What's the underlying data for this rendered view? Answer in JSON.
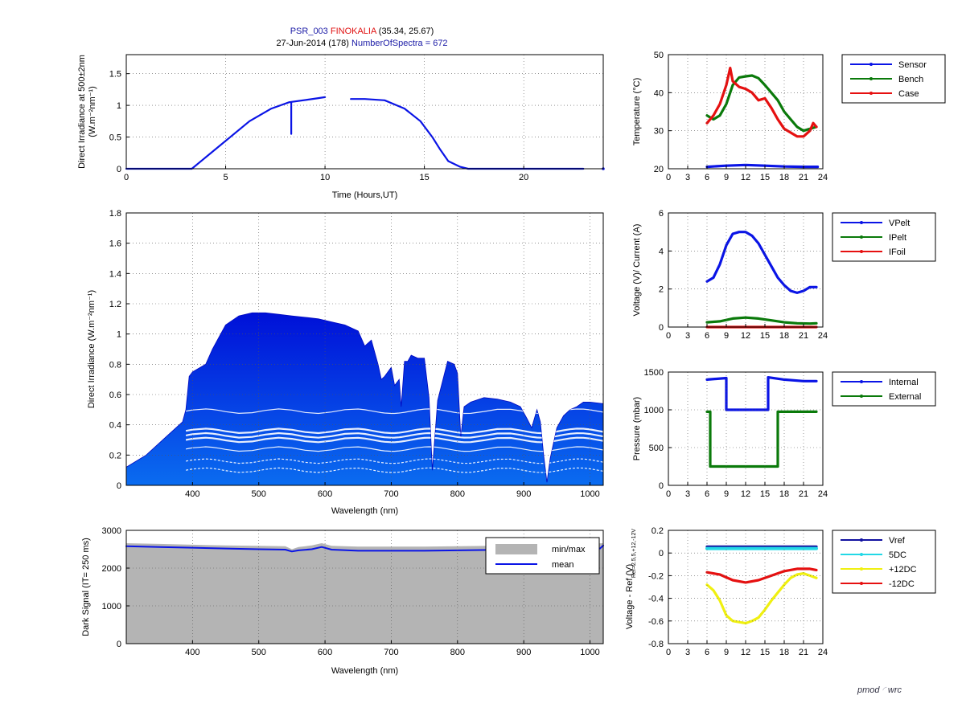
{
  "title": {
    "instrument": "PSR_003",
    "site": "FINOKALIA",
    "coords": "(35.34, 25.67)",
    "date": "27-Jun-2014 (178)",
    "spectra": "NumberOfSpectra = 672",
    "colors": {
      "instrument": "#1a1aa6",
      "site": "#e01010",
      "plain": "#000000"
    }
  },
  "logo": {
    "left": "pmod",
    "right": "wrc"
  },
  "colors": {
    "blue": "#0a14e6",
    "green": "#0a7a0a",
    "red": "#e61010",
    "cyan": "#22d8e6",
    "yellow": "#f0f010",
    "gray": "#b4b4b4",
    "navy": "#1010a0"
  },
  "chart_data": [
    {
      "id": "irr500",
      "type": "line",
      "ylabel": "Direct Irradiance at 500±2nm",
      "ylabel2": "(W.m⁻²nm⁻¹)",
      "xlabel": "Time (Hours,UT)",
      "xlim": [
        0,
        24
      ],
      "ylim": [
        0,
        1.8
      ],
      "xticks": [
        0,
        5,
        10,
        15,
        20
      ],
      "yticks": [
        0,
        0.5,
        1,
        1.5
      ],
      "grid": true,
      "series": [
        {
          "color": "blue",
          "x": [
            0,
            3.3,
            6.2,
            7.3,
            8.2,
            9.6,
            10.0
          ],
          "y": [
            0,
            0,
            0.75,
            0.95,
            1.05,
            1.11,
            1.13
          ]
        },
        {
          "color": "blue",
          "x": [
            11.3,
            12.0,
            13.0,
            14.0,
            14.8,
            15.4,
            15.8,
            16.2,
            16.8,
            17.2,
            23.0
          ],
          "y": [
            1.1,
            1.1,
            1.08,
            0.95,
            0.75,
            0.5,
            0.3,
            0.12,
            0.03,
            0,
            0
          ]
        },
        {
          "color": "blue",
          "x": [
            8.3,
            8.3
          ],
          "y": [
            1.05,
            0.55
          ]
        }
      ],
      "points": [
        {
          "color": "blue",
          "x": 24,
          "y": 0
        }
      ]
    },
    {
      "id": "spectra",
      "type": "area",
      "ylabel": "Direct Irradiance (W.m⁻²nm⁻¹)",
      "xlabel": "Wavelength (nm)",
      "xlim": [
        300,
        1020
      ],
      "ylim": [
        0,
        1.8
      ],
      "xticks": [
        400,
        500,
        600,
        700,
        800,
        900,
        1000
      ],
      "yticks": [
        0,
        0.2,
        0.4,
        0.6,
        0.8,
        1,
        1.2,
        1.4,
        1.6,
        1.8
      ],
      "grid": true,
      "envelope": {
        "x": [
          300,
          330,
          360,
          385,
          390,
          395,
          400,
          420,
          430,
          440,
          450,
          470,
          490,
          510,
          530,
          550,
          570,
          590,
          610,
          630,
          650,
          660,
          670,
          680,
          685,
          690,
          700,
          705,
          712,
          715,
          720,
          725,
          730,
          740,
          750,
          757,
          762,
          770,
          785,
          795,
          800,
          805,
          810,
          820,
          840,
          860,
          880,
          895,
          905,
          912,
          920,
          925,
          930,
          935,
          940,
          950,
          960,
          970,
          980,
          990,
          1000,
          1020
        ],
        "y": [
          0.12,
          0.2,
          0.32,
          0.42,
          0.5,
          0.72,
          0.75,
          0.8,
          0.9,
          0.98,
          1.06,
          1.12,
          1.14,
          1.14,
          1.13,
          1.12,
          1.11,
          1.1,
          1.08,
          1.06,
          1.02,
          0.92,
          0.96,
          0.8,
          0.7,
          0.72,
          0.78,
          0.66,
          0.7,
          0.52,
          0.82,
          0.82,
          0.86,
          0.84,
          0.84,
          0.58,
          0.1,
          0.56,
          0.82,
          0.8,
          0.74,
          0.32,
          0.52,
          0.55,
          0.58,
          0.57,
          0.55,
          0.52,
          0.44,
          0.38,
          0.5,
          0.42,
          0.2,
          0.02,
          0.18,
          0.38,
          0.46,
          0.5,
          0.52,
          0.55,
          0.55,
          0.54
        ]
      },
      "levels": [
        0.1,
        0.16,
        0.24,
        0.3,
        0.33,
        0.36,
        0.49
      ]
    },
    {
      "id": "dark",
      "type": "area",
      "ylabel": "Dark Signal (IT= 250 ms)",
      "xlabel": "Wavelength (nm)",
      "xlim": [
        300,
        1020
      ],
      "ylim": [
        0,
        3000
      ],
      "xticks": [
        400,
        500,
        600,
        700,
        800,
        900,
        1000
      ],
      "yticks": [
        0,
        1000,
        2000,
        3000
      ],
      "grid": true,
      "series": [
        {
          "name": "min/max",
          "color": "gray",
          "x": [
            300,
            350,
            400,
            450,
            500,
            540,
            550,
            560,
            580,
            595,
            610,
            650,
            700,
            750,
            800,
            850,
            900,
            950,
            1000,
            1020
          ],
          "y": [
            2660,
            2640,
            2620,
            2600,
            2590,
            2580,
            2500,
            2560,
            2600,
            2660,
            2590,
            2570,
            2570,
            2570,
            2580,
            2590,
            2600,
            2620,
            2650,
            2660
          ]
        },
        {
          "name": "mean",
          "color": "blue",
          "x": [
            300,
            350,
            400,
            450,
            500,
            540,
            550,
            560,
            580,
            595,
            610,
            650,
            700,
            750,
            800,
            850,
            900,
            950,
            1000,
            1015,
            1020
          ],
          "y": [
            2580,
            2560,
            2540,
            2520,
            2500,
            2490,
            2440,
            2470,
            2500,
            2560,
            2490,
            2460,
            2460,
            2460,
            2470,
            2480,
            2490,
            2500,
            2540,
            2520,
            2600
          ]
        }
      ],
      "legend": {
        "placement": "top-right",
        "entries": [
          "min/max",
          "mean"
        ]
      }
    },
    {
      "id": "temp",
      "type": "line",
      "ylabel": "Temperature (°C)",
      "xlim": [
        0,
        24
      ],
      "ylim": [
        20,
        50
      ],
      "xticks": [
        0,
        3,
        6,
        9,
        12,
        15,
        18,
        21,
        24
      ],
      "yticks": [
        20,
        30,
        40,
        50
      ],
      "grid": true,
      "series": [
        {
          "name": "Sensor",
          "color": "blue",
          "x": [
            6,
            9,
            12,
            15,
            18,
            21,
            23.2
          ],
          "y": [
            20.5,
            20.8,
            21.0,
            20.8,
            20.6,
            20.5,
            20.5
          ]
        },
        {
          "name": "Bench",
          "color": "green",
          "x": [
            6,
            7,
            8,
            9,
            10,
            11,
            12,
            13,
            14,
            15,
            16,
            17,
            18,
            19,
            20,
            21,
            22,
            23
          ],
          "y": [
            34,
            33,
            34,
            37,
            42,
            44,
            44.3,
            44.5,
            43.8,
            42,
            40,
            38,
            35,
            33,
            31,
            30,
            30.5,
            31
          ]
        },
        {
          "name": "Case",
          "color": "red",
          "x": [
            6,
            7,
            8,
            9,
            9.6,
            10,
            11,
            12,
            13,
            14,
            15,
            16,
            17,
            18,
            19,
            20,
            21,
            22,
            22.5,
            23
          ],
          "y": [
            32,
            34,
            37,
            42,
            46.5,
            43,
            41.5,
            41,
            40,
            38,
            38.5,
            36,
            33,
            30.5,
            29.5,
            28.5,
            28.5,
            30,
            32,
            31
          ]
        }
      ],
      "legend": {
        "placement": "outside-right",
        "entries": [
          "Sensor",
          "Bench",
          "Case"
        ]
      }
    },
    {
      "id": "volt",
      "type": "line",
      "ylabel": "Voltage (V)/ Current (A)",
      "xlim": [
        0,
        24
      ],
      "ylim": [
        0,
        6
      ],
      "xticks": [
        0,
        3,
        6,
        9,
        12,
        15,
        18,
        21,
        24
      ],
      "yticks": [
        0,
        2,
        4,
        6
      ],
      "grid": true,
      "series": [
        {
          "name": "VPelt",
          "color": "blue",
          "x": [
            6,
            7,
            8,
            9,
            10,
            11,
            12,
            13,
            14,
            15,
            16,
            17,
            18,
            19,
            20,
            21,
            22,
            23
          ],
          "y": [
            2.4,
            2.6,
            3.3,
            4.3,
            4.9,
            5.0,
            5.0,
            4.8,
            4.4,
            3.8,
            3.2,
            2.6,
            2.2,
            1.9,
            1.8,
            1.9,
            2.1,
            2.1
          ]
        },
        {
          "name": "IPelt",
          "color": "green",
          "x": [
            6,
            8,
            10,
            12,
            14,
            16,
            18,
            20,
            22,
            23
          ],
          "y": [
            0.25,
            0.3,
            0.45,
            0.5,
            0.45,
            0.35,
            0.25,
            0.2,
            0.18,
            0.2
          ]
        },
        {
          "name": "IFoil",
          "color": "red",
          "x": [
            6,
            23
          ],
          "y": [
            0,
            0
          ]
        }
      ],
      "legend": {
        "placement": "outside-right",
        "entries": [
          "VPelt",
          "IPelt",
          "IFoil"
        ]
      }
    },
    {
      "id": "pressure",
      "type": "line",
      "ylabel": "Pressure (mbar)",
      "xlim": [
        0,
        24
      ],
      "ylim": [
        0,
        1500
      ],
      "xticks": [
        0,
        3,
        6,
        9,
        12,
        15,
        18,
        21,
        24
      ],
      "yticks": [
        0,
        500,
        1000,
        1500
      ],
      "grid": true,
      "series": [
        {
          "name": "Internal",
          "color": "blue",
          "x": [
            6,
            9,
            9,
            15.5,
            15.5,
            18,
            21,
            23
          ],
          "y": [
            1400,
            1420,
            1000,
            1000,
            1430,
            1400,
            1380,
            1380
          ]
        },
        {
          "name": "External",
          "color": "green",
          "x": [
            6,
            6.5,
            6.5,
            17,
            17,
            23
          ],
          "y": [
            975,
            975,
            250,
            250,
            975,
            975
          ]
        }
      ],
      "legend": {
        "placement": "outside-right",
        "entries": [
          "Internal",
          "External"
        ]
      }
    },
    {
      "id": "ref",
      "type": "line",
      "ylabel": "Voltage - Ref (V)",
      "ylabel_sub": "Ref=2.5,5,+12,-12V",
      "xlim": [
        0,
        24
      ],
      "ylim": [
        -0.8,
        0.2
      ],
      "xticks": [
        0,
        3,
        6,
        9,
        12,
        15,
        18,
        21,
        24
      ],
      "yticks": [
        -0.8,
        -0.6,
        -0.4,
        -0.2,
        0,
        0.2
      ],
      "grid": true,
      "series": [
        {
          "name": "Vref",
          "color": "navy",
          "x": [
            6,
            23
          ],
          "y": [
            0.055,
            0.055
          ]
        },
        {
          "name": "5DC",
          "color": "cyan",
          "x": [
            6,
            23
          ],
          "y": [
            0.04,
            0.04
          ]
        },
        {
          "name": "+12DC",
          "color": "yellow",
          "x": [
            6,
            7,
            8,
            9,
            10,
            11,
            12,
            13,
            14,
            15,
            16,
            17,
            18,
            19,
            20,
            21,
            22,
            23
          ],
          "y": [
            -0.28,
            -0.33,
            -0.42,
            -0.55,
            -0.6,
            -0.61,
            -0.62,
            -0.6,
            -0.57,
            -0.5,
            -0.42,
            -0.35,
            -0.28,
            -0.22,
            -0.19,
            -0.18,
            -0.2,
            -0.22
          ]
        },
        {
          "name": "-12DC",
          "color": "red",
          "x": [
            6,
            8,
            10,
            12,
            14,
            16,
            18,
            20,
            22,
            23
          ],
          "y": [
            -0.17,
            -0.19,
            -0.24,
            -0.26,
            -0.24,
            -0.2,
            -0.16,
            -0.14,
            -0.14,
            -0.15
          ]
        }
      ],
      "legend": {
        "placement": "outside-right",
        "entries": [
          "Vref",
          "5DC",
          "+12DC",
          "-12DC"
        ]
      }
    }
  ]
}
